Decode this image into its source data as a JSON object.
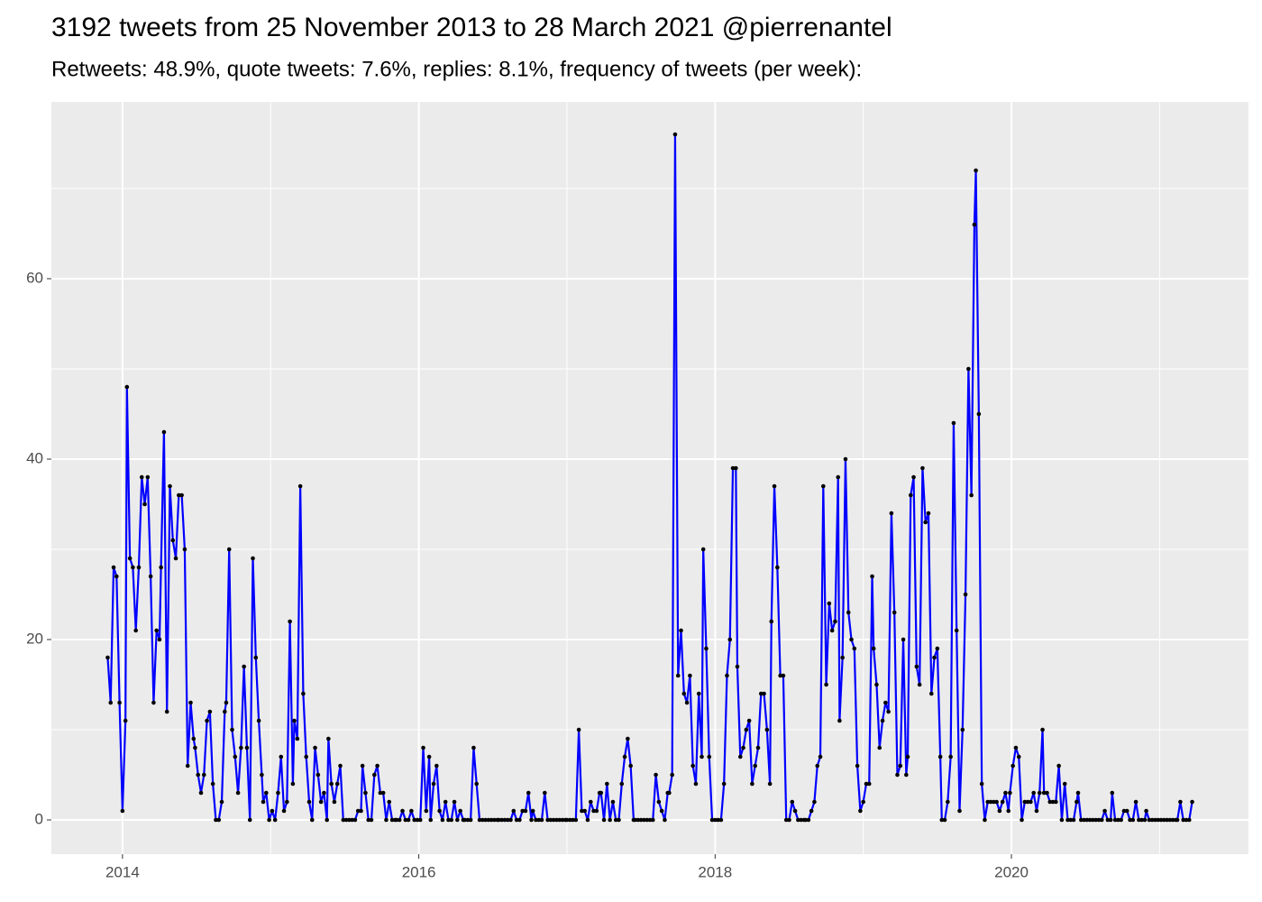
{
  "chart_data": {
    "type": "line",
    "title": "3192 tweets from 25 November 2013 to 28 March 2021 @pierrenantel",
    "subtitle": "Retweets: 48.9%, quote tweets: 7.6%, replies: 8.1%, frequency of tweets (per week):",
    "xlim": [
      2013.52,
      2021.6
    ],
    "xticks": [
      2014,
      2016,
      2018,
      2020
    ],
    "xminor": [
      2015,
      2017,
      2019,
      2021
    ],
    "ylim": [
      -3.8,
      79.6
    ],
    "yticks": [
      0,
      20,
      40,
      60
    ],
    "yminor": [
      10,
      30,
      50,
      70
    ],
    "grid": true,
    "color": "#0000ff",
    "point_color": "#000000",
    "x": [
      2013.9,
      2013.92,
      2013.94,
      2013.96,
      2013.98,
      2014,
      2014.02,
      2014.03,
      2014.05,
      2014.07,
      2014.09,
      2014.11,
      2014.13,
      2014.15,
      2014.17,
      2014.19,
      2014.21,
      2014.23,
      2014.25,
      2014.26,
      2014.28,
      2014.3,
      2014.32,
      2014.34,
      2014.36,
      2014.38,
      2014.4,
      2014.42,
      2014.44,
      2014.46,
      2014.48,
      2014.49,
      2014.51,
      2014.53,
      2014.55,
      2014.57,
      2014.59,
      2014.61,
      2014.63,
      2014.65,
      2014.67,
      2014.69,
      2014.7,
      2014.72,
      2014.74,
      2014.76,
      2014.78,
      2014.8,
      2014.82,
      2014.84,
      2014.86,
      2014.88,
      2014.9,
      2014.92,
      2014.94,
      2014.95,
      2014.97,
      2014.99,
      2015.01,
      2015.03,
      2015.05,
      2015.07,
      2015.09,
      2015.11,
      2015.13,
      2015.15,
      2015.16,
      2015.18,
      2015.2,
      2015.22,
      2015.24,
      2015.26,
      2015.28,
      2015.3,
      2015.32,
      2015.34,
      2015.36,
      2015.38,
      2015.39,
      2015.41,
      2015.43,
      2015.45,
      2015.47,
      2015.49,
      2015.51,
      2015.53,
      2015.55,
      2015.57,
      2015.59,
      2015.61,
      2015.62,
      2015.64,
      2015.66,
      2015.68,
      2015.7,
      2015.72,
      2015.74,
      2015.76,
      2015.78,
      2015.8,
      2015.82,
      2015.84,
      2015.85,
      2015.87,
      2015.89,
      2015.91,
      2015.93,
      2015.95,
      2015.97,
      2015.99,
      2016.01,
      2016.03,
      2016.05,
      2016.07,
      2016.08,
      2016.1,
      2016.12,
      2016.14,
      2016.16,
      2016.18,
      2016.2,
      2016.22,
      2016.24,
      2016.26,
      2016.28,
      2016.3,
      2016.31,
      2016.33,
      2016.35,
      2016.37,
      2016.39,
      2016.41,
      2016.43,
      2016.45,
      2016.47,
      2016.49,
      2016.51,
      2016.53,
      2016.54,
      2016.56,
      2016.58,
      2016.6,
      2016.62,
      2016.64,
      2016.66,
      2016.68,
      2016.7,
      2016.72,
      2016.74,
      2016.76,
      2016.77,
      2016.79,
      2016.81,
      2016.83,
      2016.85,
      2016.87,
      2016.89,
      2016.91,
      2016.93,
      2016.95,
      2016.97,
      2016.99,
      2017,
      2017.02,
      2017.04,
      2017.06,
      2017.08,
      2017.1,
      2017.12,
      2017.14,
      2017.16,
      2017.18,
      2017.2,
      2017.22,
      2017.23,
      2017.25,
      2017.27,
      2017.29,
      2017.31,
      2017.33,
      2017.35,
      2017.37,
      2017.39,
      2017.41,
      2017.43,
      2017.45,
      2017.46,
      2017.48,
      2017.5,
      2017.52,
      2017.54,
      2017.56,
      2017.58,
      2017.6,
      2017.62,
      2017.64,
      2017.66,
      2017.68,
      2017.69,
      2017.71,
      2017.73,
      2017.75,
      2017.77,
      2017.79,
      2017.81,
      2017.83,
      2017.85,
      2017.87,
      2017.89,
      2017.91,
      2017.92,
      2017.94,
      2017.96,
      2017.98,
      2018,
      2018.02,
      2018.04,
      2018.06,
      2018.08,
      2018.1,
      2018.12,
      2018.14,
      2018.15,
      2018.17,
      2018.19,
      2018.21,
      2018.23,
      2018.25,
      2018.27,
      2018.29,
      2018.31,
      2018.33,
      2018.35,
      2018.37,
      2018.38,
      2018.4,
      2018.42,
      2018.44,
      2018.46,
      2018.48,
      2018.5,
      2018.52,
      2018.54,
      2018.56,
      2018.58,
      2018.6,
      2018.61,
      2018.63,
      2018.65,
      2018.67,
      2018.69,
      2018.71,
      2018.73,
      2018.75,
      2018.77,
      2018.79,
      2018.81,
      2018.83,
      2018.84,
      2018.86,
      2018.88,
      2018.9,
      2018.92,
      2018.94,
      2018.96,
      2018.98,
      2019,
      2019.02,
      2019.04,
      2019.06,
      2019.07,
      2019.09,
      2019.11,
      2019.13,
      2019.15,
      2019.17,
      2019.19,
      2019.21,
      2019.23,
      2019.25,
      2019.27,
      2019.29,
      2019.3,
      2019.32,
      2019.34,
      2019.36,
      2019.38,
      2019.4,
      2019.42,
      2019.44,
      2019.46,
      2019.48,
      2019.5,
      2019.52,
      2019.53,
      2019.55,
      2019.57,
      2019.59,
      2019.61,
      2019.63,
      2019.65,
      2019.67,
      2019.69,
      2019.71,
      2019.73,
      2019.75,
      2019.76,
      2019.78,
      2019.8,
      2019.82,
      2019.84,
      2019.86,
      2019.88,
      2019.9,
      2019.92,
      2019.94,
      2019.96,
      2019.98,
      2019.99,
      2020.01,
      2020.03,
      2020.05,
      2020.07,
      2020.09,
      2020.11,
      2020.13,
      2020.15,
      2020.17,
      2020.19,
      2020.21,
      2020.22,
      2020.24,
      2020.26,
      2020.28,
      2020.3,
      2020.32,
      2020.34,
      2020.36,
      2020.38,
      2020.4,
      2020.42,
      2020.44,
      2020.45,
      2020.47,
      2020.49,
      2020.51,
      2020.53,
      2020.55,
      2020.57,
      2020.59,
      2020.61,
      2020.63,
      2020.65,
      2020.67,
      2020.68,
      2020.7,
      2020.72,
      2020.74,
      2020.76,
      2020.78,
      2020.8,
      2020.82,
      2020.84,
      2020.86,
      2020.88,
      2020.9,
      2020.91,
      2020.93,
      2020.95,
      2020.97,
      2020.99,
      2021.01,
      2021.03,
      2021.05,
      2021.07,
      2021.09,
      2021.11,
      2021.12,
      2021.14,
      2021.16,
      2021.18,
      2021.2,
      2021.22
    ],
    "values": [
      18,
      13,
      28,
      27,
      13,
      1,
      11,
      48,
      29,
      28,
      21,
      28,
      38,
      35,
      38,
      27,
      13,
      21,
      20,
      28,
      43,
      12,
      37,
      31,
      29,
      36,
      36,
      30,
      6,
      13,
      9,
      8,
      5,
      3,
      5,
      11,
      12,
      4,
      0,
      0,
      2,
      12,
      13,
      30,
      10,
      7,
      3,
      8,
      17,
      8,
      0,
      29,
      18,
      11,
      5,
      2,
      3,
      0,
      1,
      0,
      3,
      7,
      1,
      2,
      22,
      4,
      11,
      9,
      37,
      14,
      7,
      2,
      0,
      8,
      5,
      2,
      3,
      0,
      9,
      4,
      2,
      4,
      6,
      0,
      0,
      0,
      0,
      0,
      1,
      1,
      6,
      3,
      0,
      0,
      5,
      6,
      3,
      3,
      0,
      2,
      0,
      0,
      0,
      0,
      1,
      0,
      0,
      1,
      0,
      0,
      0,
      8,
      1,
      7,
      0,
      4,
      6,
      1,
      0,
      2,
      0,
      0,
      2,
      0,
      1,
      0,
      0,
      0,
      0,
      8,
      4,
      0,
      0,
      0,
      0,
      0,
      0,
      0,
      0,
      0,
      0,
      0,
      0,
      1,
      0,
      0,
      1,
      1,
      3,
      0,
      1,
      0,
      0,
      0,
      3,
      0,
      0,
      0,
      0,
      0,
      0,
      0,
      0,
      0,
      0,
      0,
      10,
      1,
      1,
      0,
      2,
      1,
      1,
      3,
      3,
      0,
      4,
      0,
      2,
      0,
      0,
      4,
      7,
      9,
      6,
      0,
      0,
      0,
      0,
      0,
      0,
      0,
      0,
      5,
      2,
      1,
      0,
      3,
      3,
      5,
      76,
      16,
      21,
      14,
      13,
      16,
      6,
      4,
      14,
      7,
      30,
      19,
      7,
      0,
      0,
      0,
      0,
      4,
      16,
      20,
      39,
      39,
      17,
      7,
      8,
      10,
      11,
      4,
      6,
      8,
      14,
      14,
      10,
      4,
      22,
      37,
      28,
      16,
      16,
      0,
      0,
      2,
      1,
      0,
      0,
      0,
      0,
      0,
      1,
      2,
      6,
      7,
      37,
      15,
      24,
      21,
      22,
      38,
      11,
      18,
      40,
      23,
      20,
      19,
      6,
      1,
      2,
      4,
      4,
      27,
      19,
      15,
      8,
      11,
      13,
      12,
      34,
      23,
      5,
      6,
      20,
      5,
      7,
      36,
      38,
      17,
      15,
      39,
      33,
      34,
      14,
      18,
      19,
      7,
      0,
      0,
      2,
      7,
      44,
      21,
      1,
      10,
      25,
      50,
      36,
      66,
      72,
      45,
      4,
      0,
      2,
      2,
      2,
      2,
      1,
      2,
      3,
      1,
      3,
      6,
      8,
      7,
      0,
      2,
      2,
      2,
      3,
      1,
      3,
      10,
      3,
      3,
      2,
      2,
      2,
      6,
      0,
      4,
      0,
      0,
      0,
      2,
      3,
      0,
      0,
      0,
      0,
      0,
      0,
      0,
      0,
      1,
      0,
      0,
      3,
      0,
      0,
      0,
      1,
      1,
      0,
      0,
      2,
      0,
      0,
      0,
      1,
      0,
      0,
      0,
      0,
      0,
      0,
      0,
      0,
      0,
      0,
      0,
      2,
      0,
      0,
      0,
      2
    ]
  }
}
